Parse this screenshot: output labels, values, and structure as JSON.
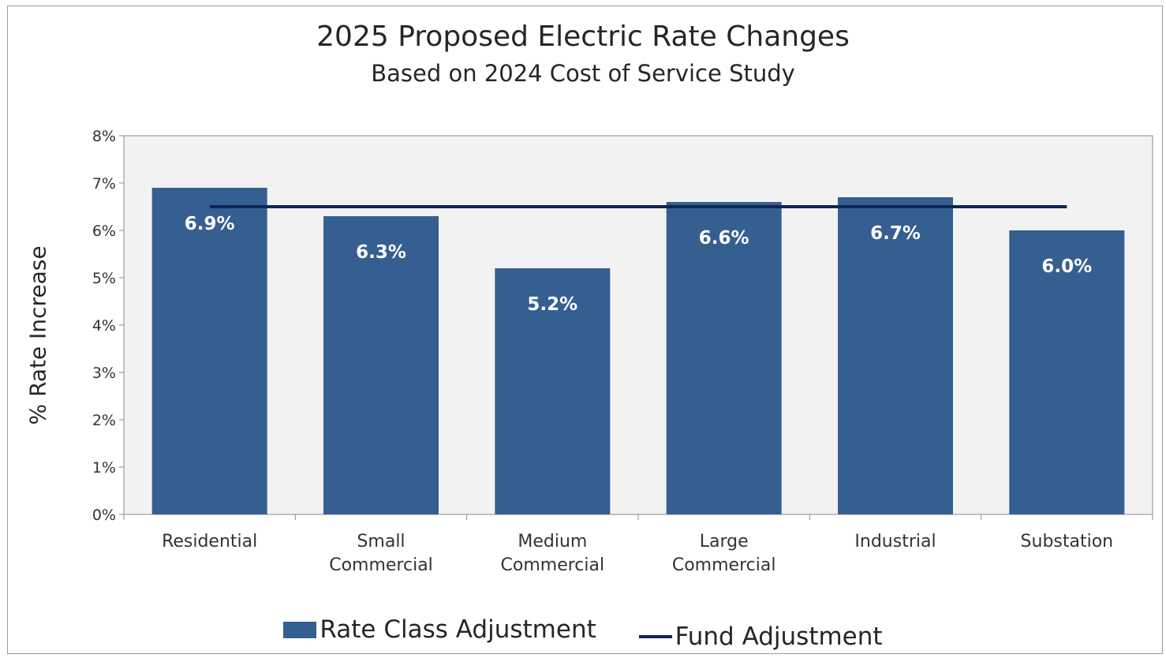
{
  "chart_data": {
    "type": "bar",
    "title": "2025 Proposed Electric Rate Changes",
    "subtitle": "Based on 2024 Cost of Service Study",
    "ylabel": "% Rate Increase",
    "ylim": [
      0,
      8
    ],
    "yticks": [
      "0%",
      "1%",
      "2%",
      "3%",
      "4%",
      "5%",
      "6%",
      "7%",
      "8%"
    ],
    "categories": [
      [
        "Residential"
      ],
      [
        "Small",
        "Commercial"
      ],
      [
        "Medium",
        "Commercial"
      ],
      [
        "Large",
        "Commercial"
      ],
      [
        "Industrial"
      ],
      [
        "Substation"
      ]
    ],
    "series": [
      {
        "name": "Rate Class Adjustment",
        "type": "bar",
        "values": [
          6.9,
          6.3,
          5.2,
          6.6,
          6.7,
          6.0
        ],
        "labels": [
          "6.9%",
          "6.3%",
          "5.2%",
          "6.6%",
          "6.7%",
          "6.0%"
        ],
        "color": "#365f91"
      },
      {
        "name": "Fund Adjustment",
        "type": "line",
        "value": 6.5,
        "color": "#0f2654"
      }
    ],
    "grid": false,
    "legend": "bottom",
    "plot_background": "#f2f2f2"
  }
}
